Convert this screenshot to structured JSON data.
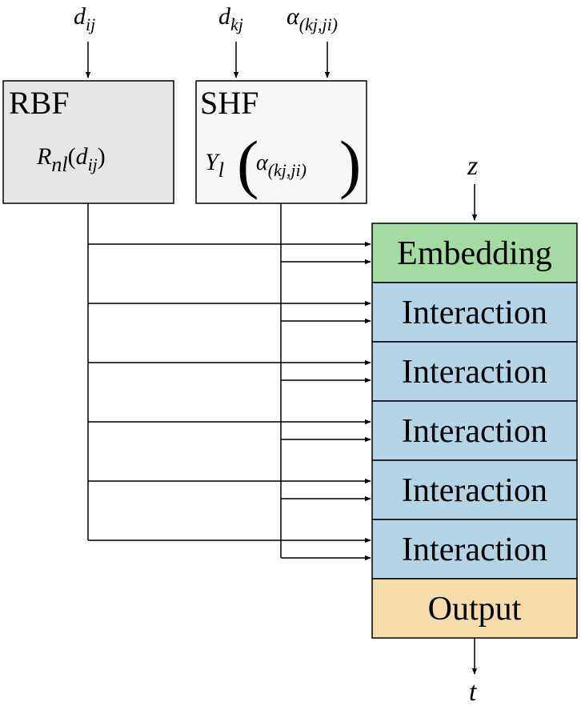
{
  "inputs": {
    "d_ij": {
      "base": "d",
      "sub": "ij"
    },
    "d_kj": {
      "base": "d",
      "sub": "kj"
    },
    "alpha": {
      "base": "α",
      "sub": "(kj,ji)"
    },
    "z": "z"
  },
  "rbf": {
    "title": "RBF",
    "formula": {
      "base": "R",
      "sub": "nl",
      "open": "(",
      "arg_base": "d",
      "arg_sub": "ij",
      "close": ")"
    },
    "fill": "#e6e6e6"
  },
  "shf": {
    "title": "SHF",
    "formula": {
      "base": "Y",
      "sub": "l",
      "open": "(",
      "arg_base": "α",
      "arg_sub": "(kj,ji)",
      "close": ")"
    },
    "fill": "#f7f7f7"
  },
  "stack": [
    {
      "label": "Embedding",
      "fill": "#a3dba3"
    },
    {
      "label": "Interaction",
      "fill": "#b4d4e8"
    },
    {
      "label": "Interaction",
      "fill": "#b4d4e8"
    },
    {
      "label": "Interaction",
      "fill": "#b4d4e8"
    },
    {
      "label": "Interaction",
      "fill": "#b4d4e8"
    },
    {
      "label": "Interaction",
      "fill": "#b4d4e8"
    },
    {
      "label": "Output",
      "fill": "#f5dcaa"
    }
  ],
  "output_label": "t"
}
